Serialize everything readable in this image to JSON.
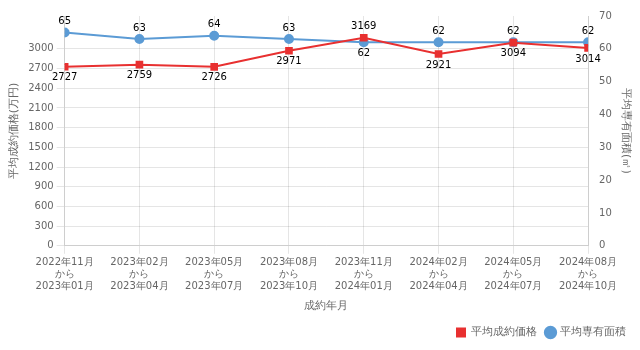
{
  "chart_data": {
    "type": "line",
    "xlabel": "成約年月",
    "ylabel": "平均成約価格(万円)",
    "y2label": "平均専有面積(㎡)",
    "categories": [
      "2022年11月\nから\n2023年01月",
      "2023年02月\nから\n2023年04月",
      "2023年05月\nから\n2023年07月",
      "2023年08月\nから\n2023年10月",
      "2023年11月\nから\n2024年01月",
      "2024年02月\nから\n2024年04月",
      "2024年05月\nから\n2024年07月",
      "2024年08月\nから\n2024年10月"
    ],
    "series": [
      {
        "name": "平均成約価格",
        "color": "#e83030",
        "marker": "square",
        "axis": "y",
        "values": [
          2727,
          2759,
          2726,
          2971,
          3169,
          2921,
          3094,
          3014
        ]
      },
      {
        "name": "平均専有面積",
        "color": "#5b9bd5",
        "marker": "circle",
        "axis": "y2",
        "values": [
          65,
          63,
          64,
          63,
          62,
          62,
          62,
          62
        ]
      }
    ],
    "ylim": [
      0,
      3500
    ],
    "yticks": [
      0,
      300,
      600,
      900,
      1200,
      1500,
      1800,
      2100,
      2400,
      2700,
      3000
    ],
    "y2lim": [
      0,
      70
    ],
    "y2ticks": [
      0,
      10,
      20,
      30,
      40,
      50,
      60,
      70
    ],
    "grid": true,
    "data_labels": true,
    "legend": "lower right"
  }
}
